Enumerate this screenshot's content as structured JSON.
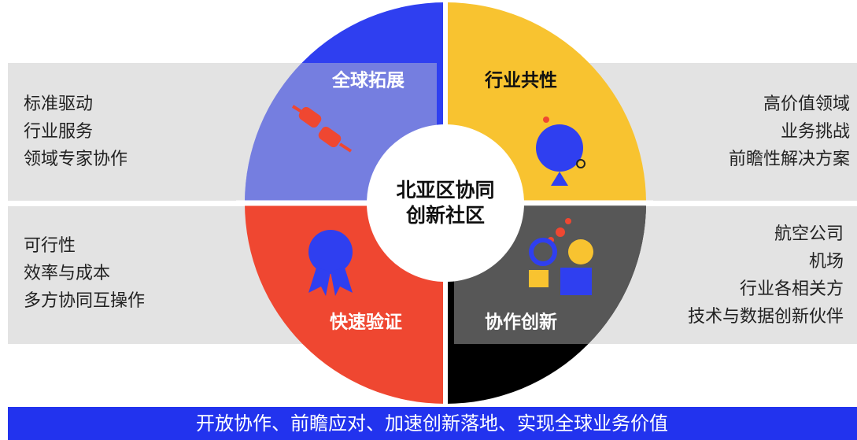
{
  "center": {
    "lines": [
      "北亚区协同",
      "创新社区"
    ]
  },
  "quadrants": [
    {
      "title": "全球拓展"
    },
    {
      "title": "行业共性"
    },
    {
      "title": "快速验证"
    },
    {
      "title": "协作创新"
    }
  ],
  "panels": {
    "top_left": [
      "标准驱动",
      "行业服务",
      "领域专家协作"
    ],
    "top_right": [
      "高价值领域",
      "业务挑战",
      "前瞻性解决方案"
    ],
    "bottom_left": [
      "可行性",
      "效率与成本",
      "多方协同互操作"
    ],
    "bottom_right": [
      "航空公司",
      "机场",
      "行业各相关方",
      "技术与数据创新伙伴"
    ]
  },
  "banner": "开放协作、前瞻应对、加速创新落地、实现全球业务价值"
}
